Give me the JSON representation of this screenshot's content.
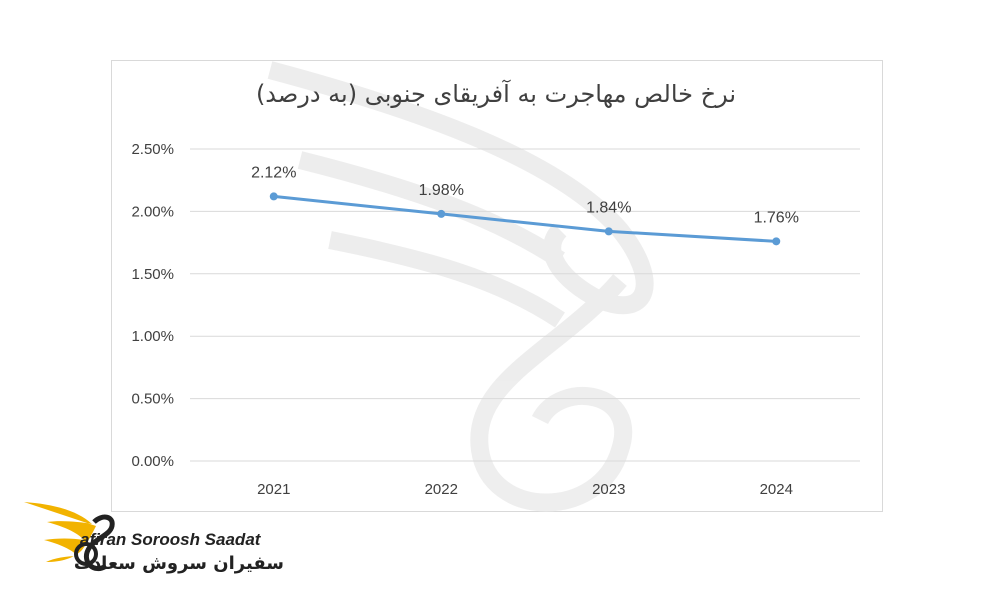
{
  "chart_data": {
    "type": "line",
    "title": "نرخ خالص مهاجرت به آفریقای جنوبی (به درصد)",
    "categories": [
      "2021",
      "2022",
      "2023",
      "2024"
    ],
    "series": [
      {
        "values": [
          2.12,
          1.98,
          1.84,
          1.76
        ],
        "color": "#5b9bd5"
      }
    ],
    "data_labels": [
      "2.12%",
      "1.98%",
      "1.84%",
      "1.76%"
    ],
    "y_ticks": [
      "0.00%",
      "0.50%",
      "1.00%",
      "1.50%",
      "2.00%",
      "2.50%"
    ],
    "ylim": [
      0,
      2.5
    ],
    "grid": true,
    "legend": "none"
  },
  "watermark": {
    "icon": "swan-logo-icon",
    "color": "#e6e6e6"
  },
  "logo": {
    "icon": "swan-wing-icon",
    "text_en": "afiran Soroosh Saadat",
    "text_fa": "سفیران سروش سعادت",
    "accent_color": "#f2b300"
  }
}
